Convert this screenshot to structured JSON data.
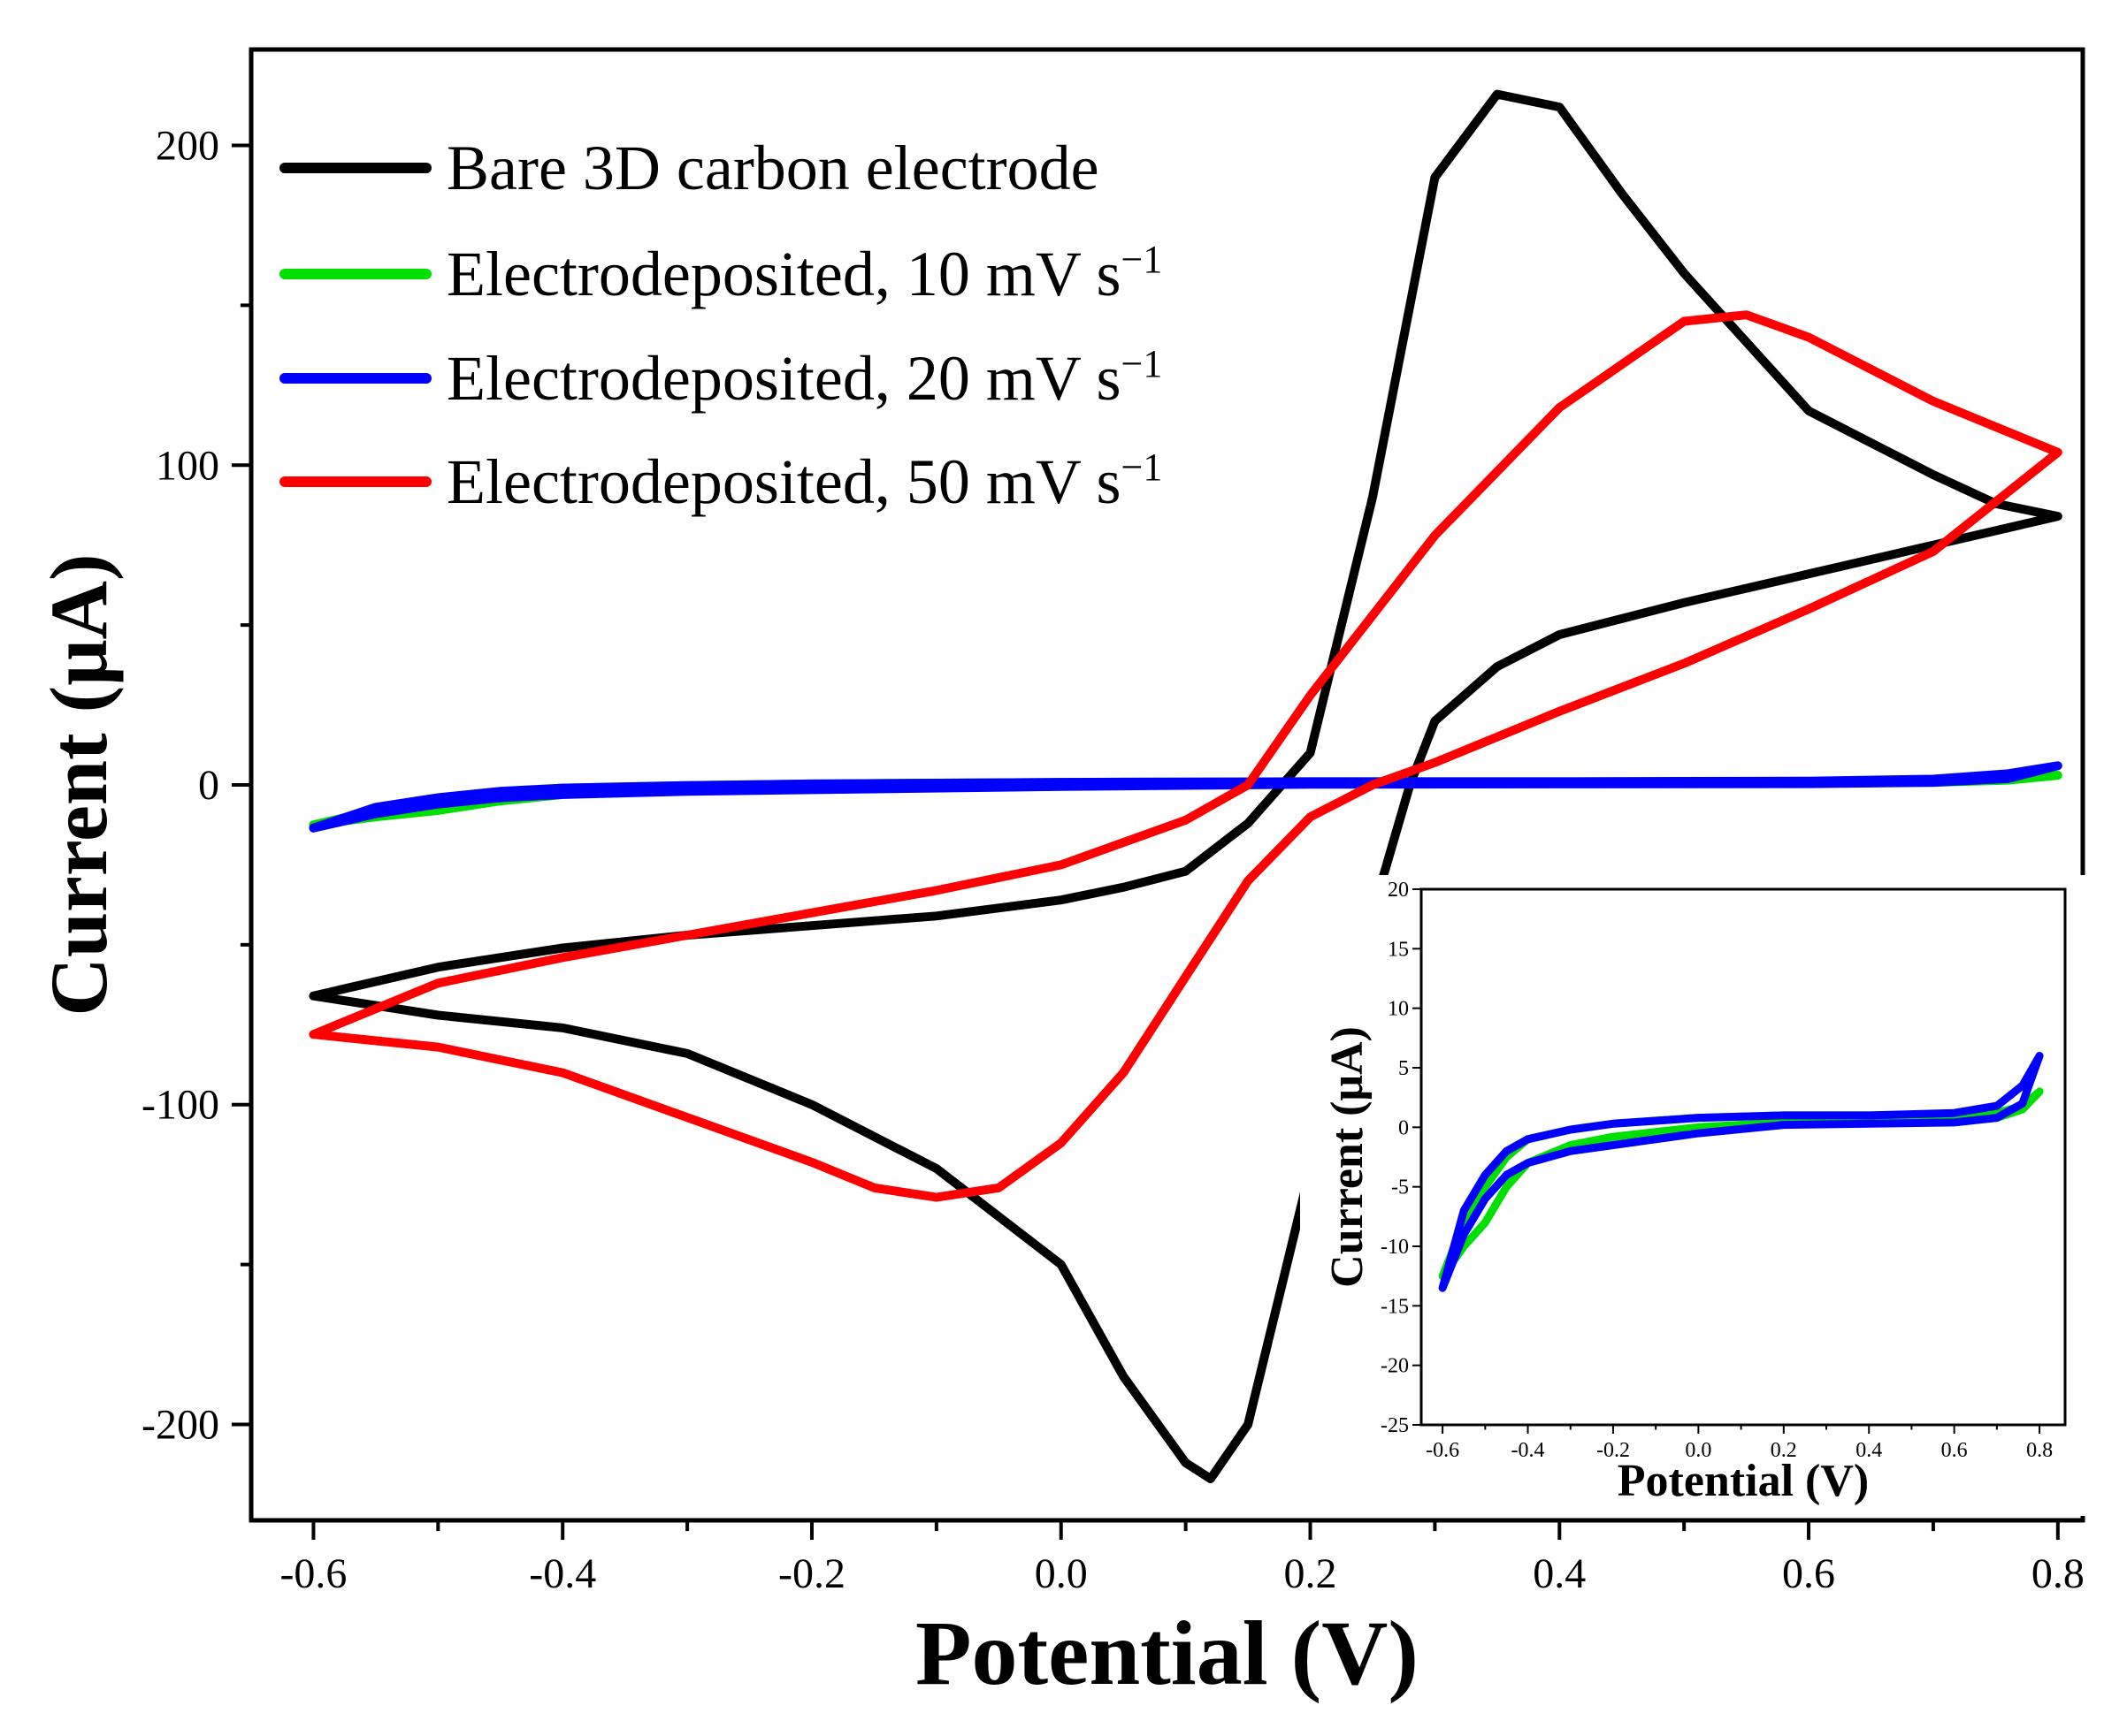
{
  "chart_data": [
    {
      "type": "line",
      "xlabel": "Potential (V)",
      "ylabel": "Current (μA)",
      "xlim": [
        -0.65,
        0.82
      ],
      "ylim": [
        -230,
        230
      ],
      "xticks": [
        -0.6,
        -0.4,
        -0.2,
        0.0,
        0.2,
        0.4,
        0.6,
        0.8
      ],
      "xtick_labels": [
        "-0.6",
        "-0.4",
        "-0.2",
        "0.0",
        "0.2",
        "0.4",
        "0.6",
        "0.8"
      ],
      "yticks": [
        -200,
        -100,
        0,
        100,
        200
      ],
      "ytick_labels": [
        "-200",
        "-100",
        "0",
        "100",
        "200"
      ],
      "legend_position": "top-left",
      "grid": false,
      "series": [
        {
          "name": "Bare 3D carbon electrode",
          "color": "#000000",
          "x": [
            -0.6,
            -0.5,
            -0.4,
            -0.3,
            -0.2,
            -0.1,
            0.0,
            0.05,
            0.1,
            0.12,
            0.15,
            0.2,
            0.25,
            0.28,
            0.3,
            0.35,
            0.4,
            0.5,
            0.6,
            0.7,
            0.8,
            0.8,
            0.75,
            0.7,
            0.6,
            0.5,
            0.45,
            0.4,
            0.35,
            0.3,
            0.25,
            0.2,
            0.15,
            0.1,
            0.05,
            0.0,
            -0.1,
            -0.2,
            -0.3,
            -0.4,
            -0.5,
            -0.6
          ],
          "y": [
            -66,
            -72,
            -76,
            -84,
            -100,
            -120,
            -150,
            -185,
            -212,
            -217,
            -200,
            -120,
            -40,
            0,
            20,
            37,
            47,
            57,
            66,
            75,
            84,
            84,
            88,
            97,
            117,
            160,
            185,
            212,
            216,
            190,
            90,
            10,
            -12,
            -27,
            -32,
            -36,
            -41,
            -44,
            -47,
            -51,
            -57,
            -66
          ]
        },
        {
          "name": "Electrodeposited, 10 mV s⁻¹",
          "color": "#00e000",
          "x": [
            -0.6,
            -0.55,
            -0.5,
            -0.45,
            -0.4,
            -0.3,
            -0.2,
            0.0,
            0.2,
            0.4,
            0.6,
            0.7,
            0.76,
            0.8,
            0.8,
            0.76,
            0.7,
            0.6,
            0.4,
            0.2,
            0.0,
            -0.2,
            -0.3,
            -0.4,
            -0.45,
            -0.5,
            -0.55,
            -0.6
          ],
          "y": [
            -12.5,
            -10,
            -8,
            -5,
            -3,
            -1.5,
            -0.8,
            0,
            0.4,
            0.5,
            0.5,
            0.8,
            1.5,
            3,
            3,
            1.8,
            1.2,
            1,
            1,
            1,
            0.8,
            0.3,
            -0.2,
            -1,
            -2.5,
            -5,
            -8,
            -12.5
          ]
        },
        {
          "name": "Electrodeposited, 20 mV s⁻¹",
          "color": "#0000ff",
          "x": [
            -0.6,
            -0.55,
            -0.5,
            -0.45,
            -0.4,
            -0.3,
            -0.2,
            0.0,
            0.2,
            0.4,
            0.6,
            0.7,
            0.76,
            0.8,
            0.8,
            0.76,
            0.7,
            0.6,
            0.4,
            0.2,
            0.0,
            -0.2,
            -0.3,
            -0.4,
            -0.45,
            -0.5,
            -0.55,
            -0.6
          ],
          "y": [
            -13.5,
            -9,
            -6,
            -4,
            -3,
            -2,
            -1.5,
            -0.5,
            0.2,
            0.3,
            0.4,
            0.8,
            2,
            6,
            6,
            3.5,
            1.8,
            1.2,
            1,
            1,
            0.8,
            0.3,
            -0.2,
            -1,
            -2,
            -4,
            -7,
            -13.5
          ]
        },
        {
          "name": "Electrodeposited, 50 mV s⁻¹",
          "color": "#ff0000",
          "x": [
            -0.6,
            -0.5,
            -0.4,
            -0.3,
            -0.2,
            -0.15,
            -0.1,
            -0.05,
            0.0,
            0.05,
            0.1,
            0.15,
            0.2,
            0.25,
            0.3,
            0.35,
            0.4,
            0.5,
            0.6,
            0.7,
            0.8,
            0.8,
            0.75,
            0.7,
            0.6,
            0.55,
            0.5,
            0.4,
            0.3,
            0.2,
            0.15,
            0.1,
            0.0,
            -0.1,
            -0.2,
            -0.3,
            -0.4,
            -0.5,
            -0.6
          ],
          "y": [
            -78,
            -82,
            -90,
            -104,
            -118,
            -126,
            -129,
            -126,
            -112,
            -90,
            -60,
            -30,
            -10,
            0,
            7,
            15,
            23,
            38,
            55,
            73,
            104,
            104,
            112,
            120,
            140,
            147,
            145,
            118,
            78,
            28,
            0,
            -11,
            -25,
            -33,
            -40,
            -47,
            -54,
            -62,
            -78
          ]
        }
      ]
    },
    {
      "type": "line",
      "xlabel": "Potential (V)",
      "ylabel": "Current (μA)",
      "xlim": [
        -0.65,
        0.86
      ],
      "ylim": [
        -25,
        20
      ],
      "xticks": [
        -0.6,
        -0.4,
        -0.2,
        0.0,
        0.2,
        0.4,
        0.6,
        0.8
      ],
      "xtick_labels": [
        "-0.6",
        "-0.4",
        "-0.2",
        "0.0",
        "0.2",
        "0.4",
        "0.6",
        "0.8"
      ],
      "yticks": [
        -25,
        -20,
        -15,
        -10,
        -5,
        0,
        5,
        10,
        15,
        20
      ],
      "ytick_labels": [
        "-25",
        "-20",
        "-15",
        "-10",
        "-5",
        "0",
        "5",
        "10",
        "15",
        "20"
      ],
      "grid": false,
      "series": [
        {
          "color": "#00e000",
          "x": [
            -0.6,
            -0.55,
            -0.5,
            -0.45,
            -0.4,
            -0.3,
            -0.2,
            0.0,
            0.2,
            0.4,
            0.6,
            0.7,
            0.76,
            0.8,
            0.8,
            0.76,
            0.7,
            0.6,
            0.4,
            0.2,
            0.0,
            -0.2,
            -0.3,
            -0.4,
            -0.45,
            -0.5,
            -0.55,
            -0.6
          ],
          "y": [
            -12.5,
            -10,
            -8,
            -5,
            -3,
            -1.5,
            -0.8,
            0,
            0.4,
            0.5,
            0.5,
            0.8,
            1.5,
            3,
            3,
            1.8,
            1.2,
            1,
            1,
            1,
            0.8,
            0.3,
            -0.2,
            -1,
            -2.5,
            -5,
            -8,
            -12.5
          ]
        },
        {
          "color": "#0000ff",
          "x": [
            -0.6,
            -0.55,
            -0.5,
            -0.45,
            -0.4,
            -0.3,
            -0.2,
            0.0,
            0.2,
            0.4,
            0.6,
            0.7,
            0.76,
            0.8,
            0.8,
            0.76,
            0.7,
            0.6,
            0.4,
            0.2,
            0.0,
            -0.2,
            -0.3,
            -0.4,
            -0.45,
            -0.5,
            -0.55,
            -0.6
          ],
          "y": [
            -13.5,
            -9,
            -6,
            -4,
            -3,
            -2,
            -1.5,
            -0.5,
            0.2,
            0.3,
            0.4,
            0.8,
            2,
            6,
            6,
            3.5,
            1.8,
            1.2,
            1,
            1,
            0.8,
            0.3,
            -0.2,
            -1,
            -2,
            -4,
            -7,
            -13.5
          ]
        }
      ]
    }
  ]
}
